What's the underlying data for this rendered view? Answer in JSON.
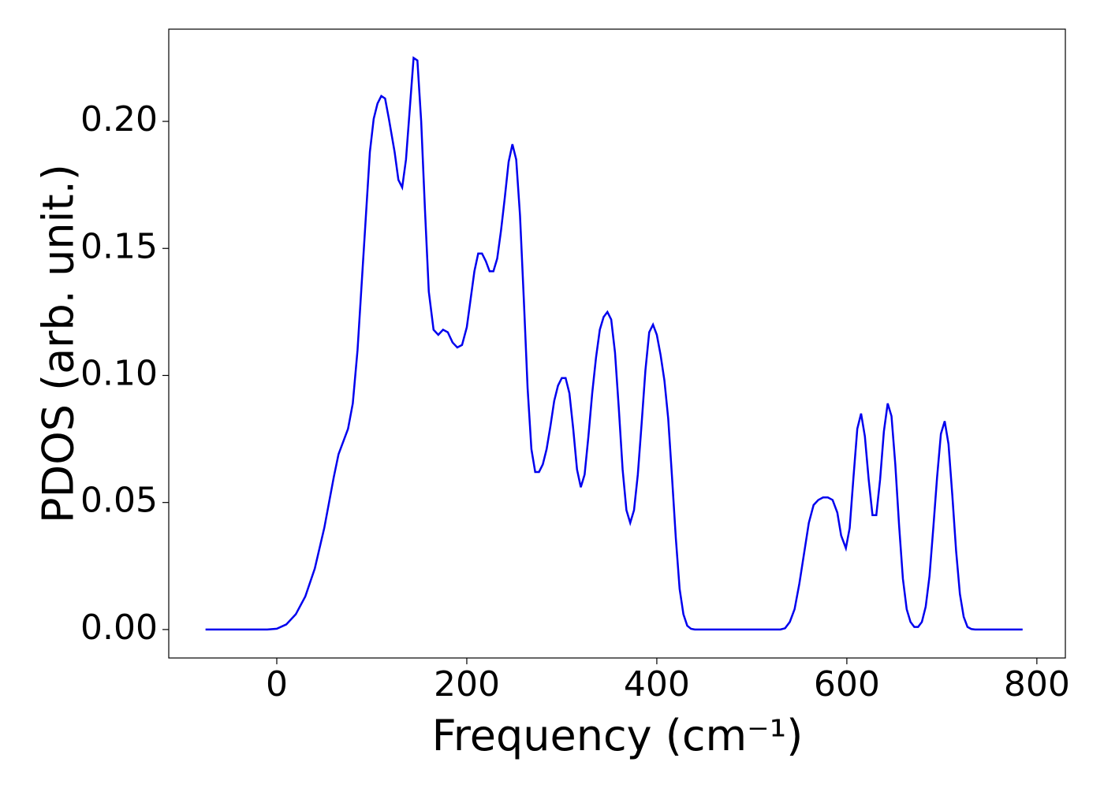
{
  "chart_data": {
    "type": "line",
    "xlabel": "Frequency (cm⁻¹)",
    "ylabel": "PDOS (arb. unit.)",
    "xlim": [
      -113.7,
      830
    ],
    "ylim": [
      -0.0112,
      0.2363
    ],
    "xticks": [
      0,
      200,
      400,
      600,
      800
    ],
    "yticks": [
      {
        "value": 0,
        "label": "0.00"
      },
      {
        "value": 0.05,
        "label": "0.05"
      },
      {
        "value": 0.1,
        "label": "0.10"
      },
      {
        "value": 0.15,
        "label": "0.15"
      },
      {
        "value": 0.2,
        "label": "0.20"
      }
    ],
    "series": [
      {
        "color": "#0000ee",
        "x": [
          -75,
          -10,
          0,
          10,
          20,
          30,
          40,
          50,
          55,
          60,
          65,
          75,
          80,
          85,
          90,
          95,
          98,
          102,
          106,
          110,
          114,
          118,
          124,
          128,
          132,
          136,
          140,
          144,
          148,
          152,
          156,
          160,
          165,
          170,
          175,
          180,
          185,
          190,
          195,
          200,
          204,
          208,
          212,
          216,
          220,
          224,
          228,
          232,
          236,
          240,
          244,
          248,
          252,
          256,
          260,
          264,
          268,
          272,
          276,
          280,
          284,
          288,
          292,
          296,
          300,
          304,
          308,
          312,
          316,
          320,
          324,
          328,
          332,
          336,
          340,
          344,
          348,
          352,
          356,
          360,
          364,
          368,
          372,
          376,
          380,
          384,
          388,
          392,
          396,
          400,
          404,
          408,
          412,
          416,
          420,
          424,
          428,
          432,
          436,
          440,
          530,
          535,
          540,
          545,
          550,
          555,
          560,
          565,
          570,
          575,
          580,
          585,
          590,
          594,
          599,
          603,
          607,
          611,
          615,
          619,
          623,
          627,
          631,
          635,
          639,
          643,
          647,
          651,
          655,
          659,
          663,
          667,
          671,
          675,
          679,
          683,
          687,
          691,
          695,
          699,
          703,
          707,
          711,
          715,
          719,
          723,
          727,
          731,
          735,
          785
        ],
        "values": [
          0,
          0,
          0.0003,
          0.002,
          0.006,
          0.013,
          0.024,
          0.04,
          0.05,
          0.06,
          0.069,
          0.079,
          0.089,
          0.11,
          0.14,
          0.17,
          0.188,
          0.201,
          0.207,
          0.21,
          0.209,
          0.201,
          0.188,
          0.177,
          0.174,
          0.185,
          0.205,
          0.225,
          0.224,
          0.2,
          0.165,
          0.133,
          0.118,
          0.116,
          0.118,
          0.117,
          0.113,
          0.111,
          0.112,
          0.119,
          0.13,
          0.141,
          0.148,
          0.148,
          0.145,
          0.141,
          0.141,
          0.146,
          0.157,
          0.17,
          0.184,
          0.191,
          0.185,
          0.163,
          0.13,
          0.095,
          0.071,
          0.062,
          0.062,
          0.065,
          0.071,
          0.08,
          0.09,
          0.096,
          0.099,
          0.099,
          0.093,
          0.079,
          0.063,
          0.056,
          0.061,
          0.076,
          0.093,
          0.107,
          0.118,
          0.123,
          0.125,
          0.122,
          0.109,
          0.087,
          0.063,
          0.047,
          0.042,
          0.047,
          0.061,
          0.081,
          0.102,
          0.117,
          0.12,
          0.116,
          0.108,
          0.098,
          0.083,
          0.06,
          0.036,
          0.016,
          0.006,
          0.0015,
          0.0003,
          0,
          0,
          0.0005,
          0.003,
          0.008,
          0.018,
          0.03,
          0.042,
          0.049,
          0.051,
          0.052,
          0.052,
          0.051,
          0.046,
          0.037,
          0.032,
          0.04,
          0.06,
          0.079,
          0.085,
          0.076,
          0.059,
          0.045,
          0.045,
          0.059,
          0.078,
          0.089,
          0.084,
          0.065,
          0.041,
          0.02,
          0.008,
          0.003,
          0.001,
          0.001,
          0.003,
          0.009,
          0.021,
          0.04,
          0.06,
          0.077,
          0.082,
          0.073,
          0.053,
          0.031,
          0.014,
          0.005,
          0.001,
          0.0002,
          0,
          0
        ]
      }
    ]
  }
}
